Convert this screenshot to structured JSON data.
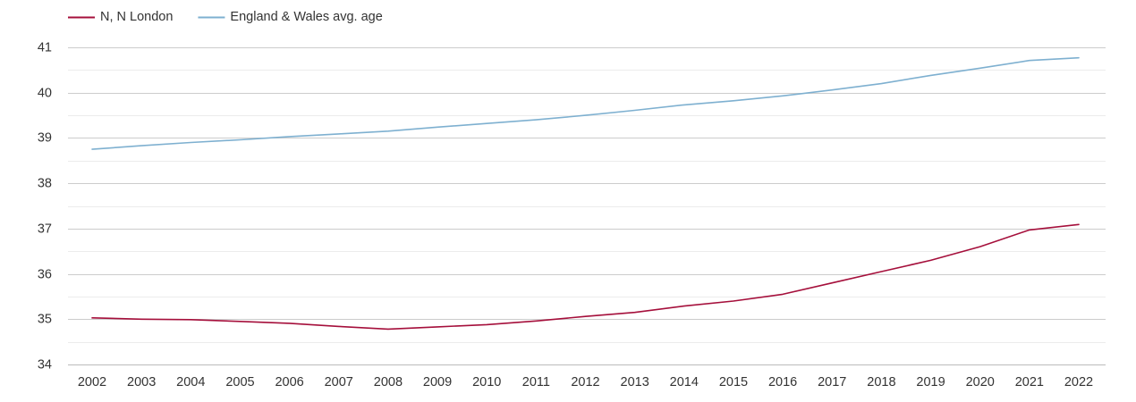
{
  "chart_data": {
    "type": "line",
    "title": "",
    "xlabel": "",
    "ylabel": "",
    "ylim": [
      34,
      41
    ],
    "yticks": [
      34,
      35,
      36,
      37,
      38,
      39,
      40,
      41
    ],
    "grid": true,
    "legend_position": "top-left",
    "x": [
      "2002",
      "2003",
      "2004",
      "2005",
      "2006",
      "2007",
      "2008",
      "2009",
      "2010",
      "2011",
      "2012",
      "2013",
      "2014",
      "2015",
      "2016",
      "2017",
      "2018",
      "2019",
      "2020",
      "2021",
      "2022"
    ],
    "series": [
      {
        "name": "N, N London",
        "color": "#a50f3b",
        "values": [
          35.03,
          35.0,
          34.99,
          34.95,
          34.91,
          34.84,
          34.78,
          34.83,
          34.88,
          34.96,
          35.06,
          35.15,
          35.29,
          35.4,
          35.55,
          35.8,
          36.05,
          36.3,
          36.6,
          36.97,
          37.09
        ]
      },
      {
        "name": "England & Wales avg. age",
        "color": "#7eb0d0",
        "values": [
          38.75,
          38.83,
          38.9,
          38.96,
          39.03,
          39.09,
          39.15,
          39.24,
          39.32,
          39.4,
          39.5,
          39.61,
          39.73,
          39.82,
          39.93,
          40.06,
          40.2,
          40.38,
          40.54,
          40.71,
          40.77
        ]
      }
    ]
  }
}
